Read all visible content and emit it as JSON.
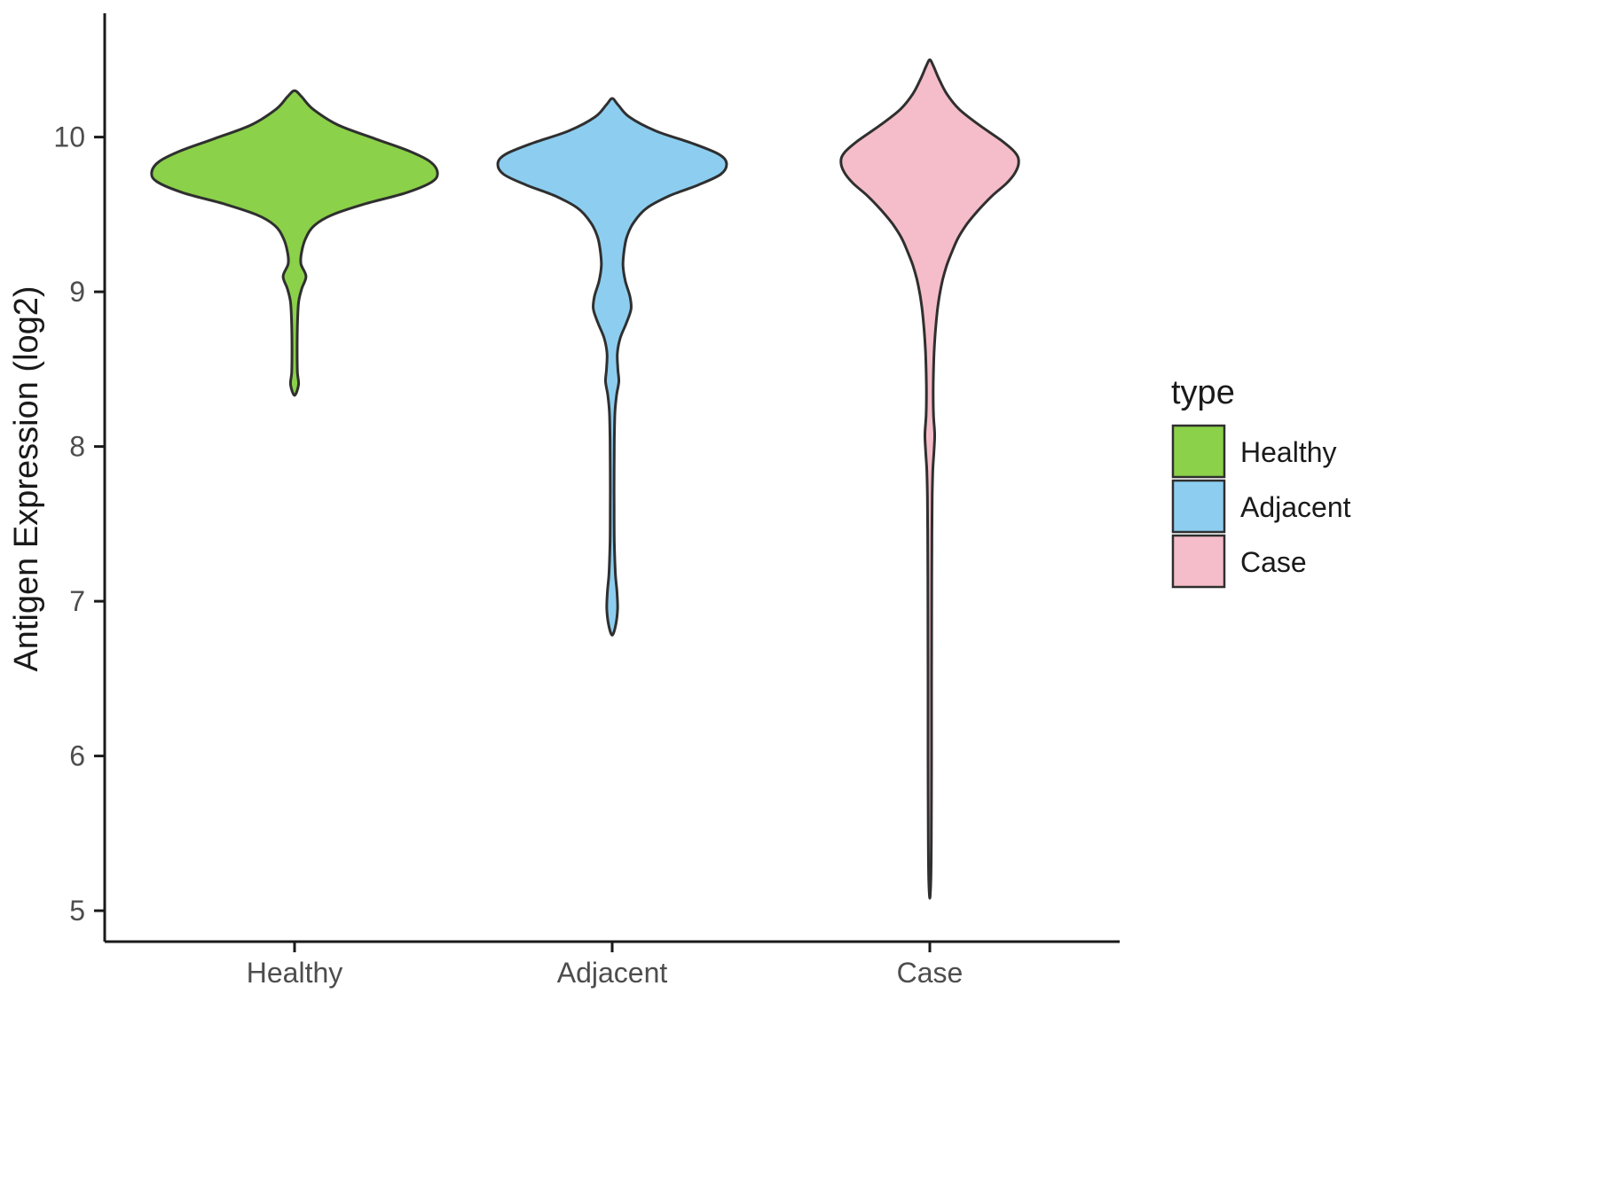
{
  "chart_data": {
    "type": "violin",
    "title": "",
    "xlabel": "",
    "ylabel": "Antigen Expression (log2)",
    "ylim": [
      4.8,
      10.8
    ],
    "yticks": [
      5,
      6,
      7,
      8,
      9,
      10
    ],
    "categories": [
      "Healthy",
      "Adjacent",
      "Case"
    ],
    "grid": false,
    "legend": {
      "title": "type",
      "position": "right",
      "entries": [
        {
          "label": "Healthy",
          "color": "#8BD149"
        },
        {
          "label": "Adjacent",
          "color": "#8DCEF0"
        },
        {
          "label": "Case",
          "color": "#F5BDC9"
        }
      ]
    },
    "style": {
      "outline_color": "#2F2F2F",
      "axis_color": "#1a1a1a",
      "tick_label_color": "#4d4d4d",
      "background": "#ffffff"
    },
    "series": [
      {
        "name": "Healthy",
        "color": "#8BD149",
        "max_halfwidth": 0.45,
        "y_min": 8.33,
        "y_max": 10.3,
        "peak_y": 9.77,
        "profile": [
          [
            10.3,
            0.0
          ],
          [
            10.26,
            0.05
          ],
          [
            10.18,
            0.13
          ],
          [
            10.08,
            0.3
          ],
          [
            9.99,
            0.56
          ],
          [
            9.91,
            0.8
          ],
          [
            9.84,
            0.95
          ],
          [
            9.77,
            1.0
          ],
          [
            9.71,
            0.96
          ],
          [
            9.64,
            0.78
          ],
          [
            9.57,
            0.5
          ],
          [
            9.5,
            0.27
          ],
          [
            9.43,
            0.14
          ],
          [
            9.35,
            0.08
          ],
          [
            9.26,
            0.05
          ],
          [
            9.18,
            0.045
          ],
          [
            9.1,
            0.08
          ],
          [
            9.02,
            0.05
          ],
          [
            8.93,
            0.028
          ],
          [
            8.78,
            0.02
          ],
          [
            8.62,
            0.018
          ],
          [
            8.48,
            0.02
          ],
          [
            8.4,
            0.028
          ],
          [
            8.33,
            0.0
          ]
        ]
      },
      {
        "name": "Adjacent",
        "color": "#8DCEF0",
        "max_halfwidth": 0.36,
        "y_min": 6.78,
        "y_max": 10.25,
        "peak_y": 9.83,
        "profile": [
          [
            10.25,
            0.0
          ],
          [
            10.21,
            0.05
          ],
          [
            10.13,
            0.15
          ],
          [
            10.04,
            0.38
          ],
          [
            9.96,
            0.7
          ],
          [
            9.89,
            0.93
          ],
          [
            9.83,
            1.0
          ],
          [
            9.76,
            0.95
          ],
          [
            9.69,
            0.75
          ],
          [
            9.62,
            0.5
          ],
          [
            9.54,
            0.3
          ],
          [
            9.45,
            0.19
          ],
          [
            9.36,
            0.13
          ],
          [
            9.27,
            0.105
          ],
          [
            9.17,
            0.095
          ],
          [
            9.07,
            0.115
          ],
          [
            8.97,
            0.155
          ],
          [
            8.89,
            0.165
          ],
          [
            8.8,
            0.125
          ],
          [
            8.7,
            0.07
          ],
          [
            8.6,
            0.045
          ],
          [
            8.5,
            0.05
          ],
          [
            8.42,
            0.058
          ],
          [
            8.33,
            0.038
          ],
          [
            8.22,
            0.024
          ],
          [
            8.05,
            0.019
          ],
          [
            7.85,
            0.017
          ],
          [
            7.6,
            0.017
          ],
          [
            7.38,
            0.019
          ],
          [
            7.18,
            0.028
          ],
          [
            7.06,
            0.042
          ],
          [
            6.95,
            0.047
          ],
          [
            6.85,
            0.032
          ],
          [
            6.78,
            0.0
          ]
        ]
      },
      {
        "name": "Case",
        "color": "#F5BDC9",
        "max_halfwidth": 0.28,
        "y_min": 5.08,
        "y_max": 10.5,
        "peak_y": 9.84,
        "profile": [
          [
            10.5,
            0.0
          ],
          [
            10.46,
            0.04
          ],
          [
            10.38,
            0.1
          ],
          [
            10.28,
            0.19
          ],
          [
            10.18,
            0.33
          ],
          [
            10.08,
            0.55
          ],
          [
            9.98,
            0.8
          ],
          [
            9.9,
            0.96
          ],
          [
            9.84,
            1.0
          ],
          [
            9.77,
            0.96
          ],
          [
            9.7,
            0.86
          ],
          [
            9.62,
            0.7
          ],
          [
            9.53,
            0.55
          ],
          [
            9.44,
            0.42
          ],
          [
            9.35,
            0.32
          ],
          [
            9.26,
            0.25
          ],
          [
            9.17,
            0.19
          ],
          [
            9.08,
            0.145
          ],
          [
            8.98,
            0.11
          ],
          [
            8.88,
            0.085
          ],
          [
            8.76,
            0.065
          ],
          [
            8.63,
            0.05
          ],
          [
            8.5,
            0.042
          ],
          [
            8.35,
            0.038
          ],
          [
            8.2,
            0.042
          ],
          [
            8.08,
            0.055
          ],
          [
            7.98,
            0.048
          ],
          [
            7.85,
            0.034
          ],
          [
            7.68,
            0.027
          ],
          [
            7.45,
            0.024
          ],
          [
            7.15,
            0.022
          ],
          [
            6.8,
            0.021
          ],
          [
            6.45,
            0.02
          ],
          [
            6.1,
            0.02
          ],
          [
            5.75,
            0.019
          ],
          [
            5.45,
            0.017
          ],
          [
            5.2,
            0.012
          ],
          [
            5.08,
            0.0
          ]
        ]
      }
    ]
  }
}
